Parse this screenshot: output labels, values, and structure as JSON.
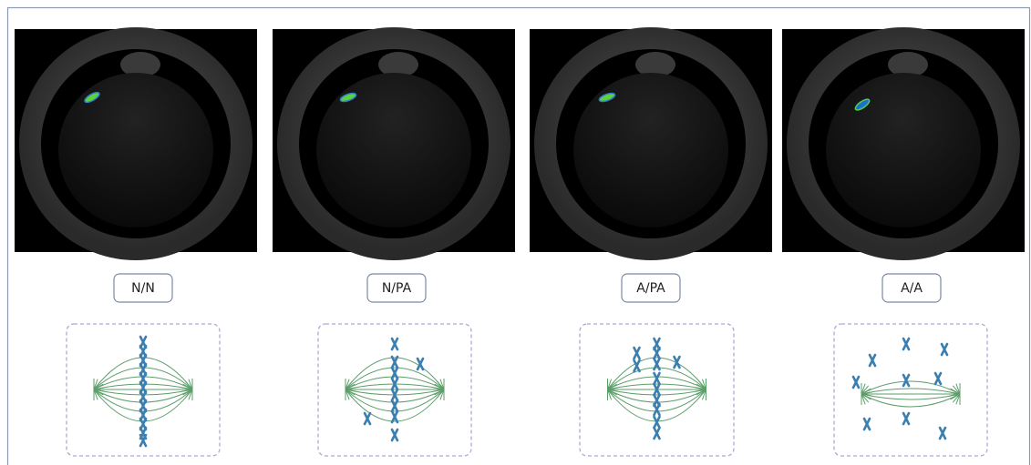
{
  "panels": [
    {
      "label": "N/N"
    },
    {
      "label": "N/PA"
    },
    {
      "label": "A/PA"
    },
    {
      "label": "A/A"
    }
  ]
}
